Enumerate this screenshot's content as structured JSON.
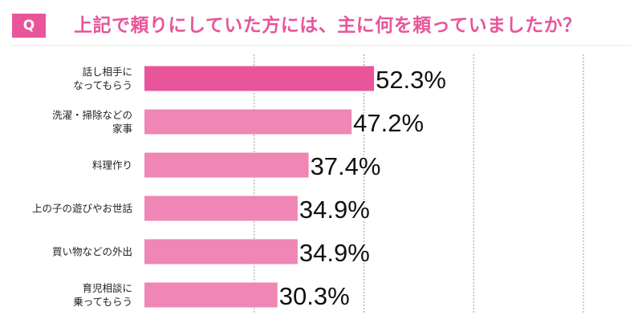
{
  "header": {
    "badge": "Q",
    "title": "上記で頼りにしていた方には、主に何を頼っていましたか？"
  },
  "colors": {
    "accent": "#e8559a",
    "bar_highlight": "#e8559a",
    "bar_normal": "#ef86b5"
  },
  "chart_data": {
    "type": "bar",
    "orientation": "horizontal",
    "categories": [
      [
        "話し相手に",
        "なってもらう"
      ],
      [
        "洗濯・掃除などの",
        "家事"
      ],
      [
        "料理作り"
      ],
      [
        "上の子の遊びやお世話"
      ],
      [
        "買い物などの外出"
      ],
      [
        "育児相談に",
        "乗ってもらう"
      ]
    ],
    "values": [
      52.3,
      47.2,
      37.4,
      34.9,
      34.9,
      30.3
    ],
    "value_labels": [
      "52.3%",
      "47.2%",
      "37.4%",
      "34.9%",
      "34.9%",
      "30.3%"
    ],
    "highlight_index": 0,
    "xlim": [
      0,
      100
    ],
    "grid": "vertical dashed",
    "title": "上記で頼りにしていた方には、主に何を頼っていましたか？"
  }
}
